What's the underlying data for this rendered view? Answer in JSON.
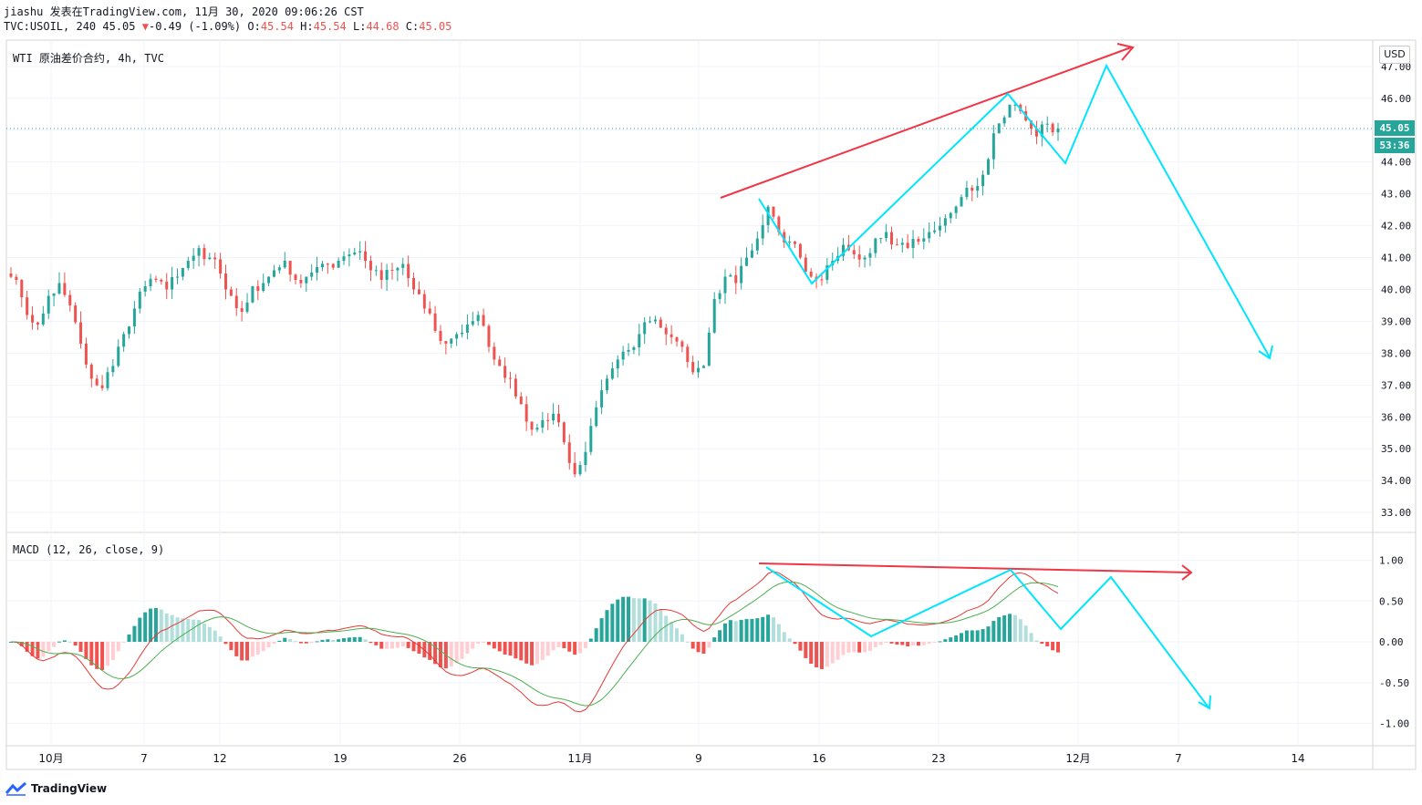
{
  "header": {
    "line1": "jiashu 发表在TradingView.com, 11月 30, 2020 09:06:26 CST",
    "symbol_prefix": "TVC:USOIL, 240 45.05",
    "change_arrow": "▼",
    "change": "-0.49 (-1.09%)",
    "o_label": "O:",
    "o_value": "45.54",
    "h_label": "H:",
    "h_value": "45.54",
    "l_label": "L:",
    "l_value": "44.68",
    "c_label": "C:",
    "c_value": "45.05"
  },
  "main_pane": {
    "title": "WTI 原油差价合约, 4h, TVC"
  },
  "macd_pane": {
    "title": "MACD (12, 26, close, 9)"
  },
  "scale": {
    "currency_button": "USD",
    "last_price": "45.05",
    "countdown": "53:36"
  },
  "branding": {
    "logo_text": "TradingView",
    "logo_icon": "tradingview-logo-icon"
  },
  "colors": {
    "up": "#26a69a",
    "down": "#ef5350",
    "annotation_red": "#f23645",
    "annotation_cyan": "#00e5ff",
    "macd_signal": "#4caf50"
  },
  "chart_data": [
    {
      "type": "candlestick",
      "title": "WTI 原油差价合约, 4h, TVC",
      "y_ticks": [
        "47.00",
        "46.00",
        "45.00",
        "44.00",
        "43.00",
        "42.00",
        "41.00",
        "40.00",
        "39.00",
        "38.00",
        "37.00",
        "36.00",
        "35.00",
        "34.00",
        "33.00"
      ],
      "ylim": [
        32.5,
        47.3
      ],
      "x_ticks": [
        "10月",
        "7",
        "12",
        "19",
        "26",
        "11月",
        "9",
        "16",
        "23",
        "12月",
        "7",
        "14"
      ],
      "approx_closes": [
        40.3,
        39.2,
        38.9,
        39.8,
        40.2,
        39.5,
        38.3,
        37.2,
        36.9,
        37.6,
        38.6,
        39.4,
        40.1,
        40.3,
        40.0,
        40.4,
        40.9,
        41.3,
        41.0,
        40.5,
        39.8,
        39.3,
        40.1,
        40.2,
        40.6,
        40.9,
        40.3,
        40.4,
        40.7,
        40.8,
        40.9,
        41.1,
        41.2,
        40.6,
        40.3,
        40.6,
        40.8,
        40.0,
        39.4,
        38.7,
        38.3,
        38.6,
        38.9,
        39.2,
        38.2,
        37.6,
        37.2,
        36.4,
        35.6,
        35.9,
        36.1,
        35.2,
        34.2,
        34.9,
        36.3,
        37.2,
        37.8,
        38.1,
        38.6,
        39.0,
        38.8,
        38.5,
        38.2,
        37.4,
        37.6,
        39.7,
        40.4,
        40.2,
        41.0,
        41.6,
        42.6,
        41.8,
        41.5,
        41.0,
        40.4,
        40.3,
        40.9,
        41.4,
        41.1,
        41.0,
        41.6,
        41.8,
        41.4,
        41.3,
        41.5,
        41.8,
        42.0,
        42.4,
        42.9,
        43.1,
        43.6,
        44.9,
        45.4,
        45.8,
        45.3,
        44.8,
        45.2,
        45.05
      ],
      "annotations": [
        "red up-trend arrow",
        "cyan projected zigzag path"
      ]
    },
    {
      "type": "line",
      "title": "MACD (12, 26, close, 9)",
      "y_ticks": [
        "1.00",
        "0.50",
        "0.00",
        "-0.50",
        "-1.00"
      ],
      "ylim": [
        -1.25,
        1.15
      ],
      "series": [
        {
          "name": "MACD"
        },
        {
          "name": "Signal"
        },
        {
          "name": "Histogram"
        }
      ],
      "annotations": [
        "red near-flat divergence arrow",
        "cyan projected zigzag path"
      ]
    }
  ]
}
